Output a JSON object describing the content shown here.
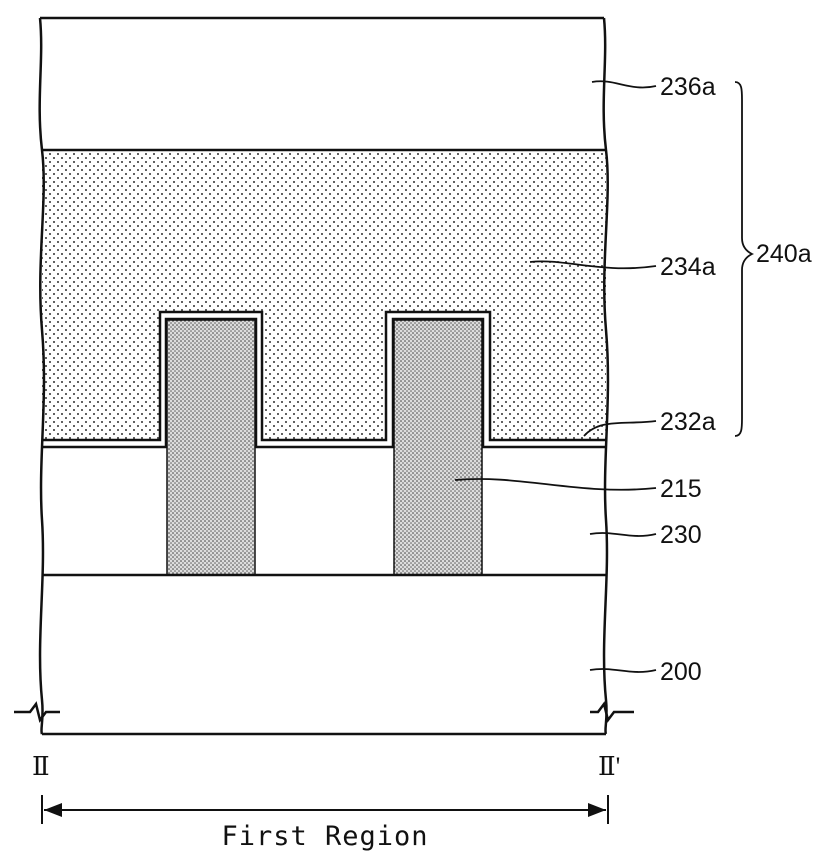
{
  "labels": {
    "layer_236a": "236a",
    "layer_234a": "234a",
    "layer_232a": "232a",
    "stack_240a": "240a",
    "pillar_215": "215",
    "layer_230": "230",
    "substrate_200": "200"
  },
  "section_marks": {
    "left": "Ⅱ",
    "right": "Ⅱ'"
  },
  "dimension": {
    "label": "First Region"
  }
}
